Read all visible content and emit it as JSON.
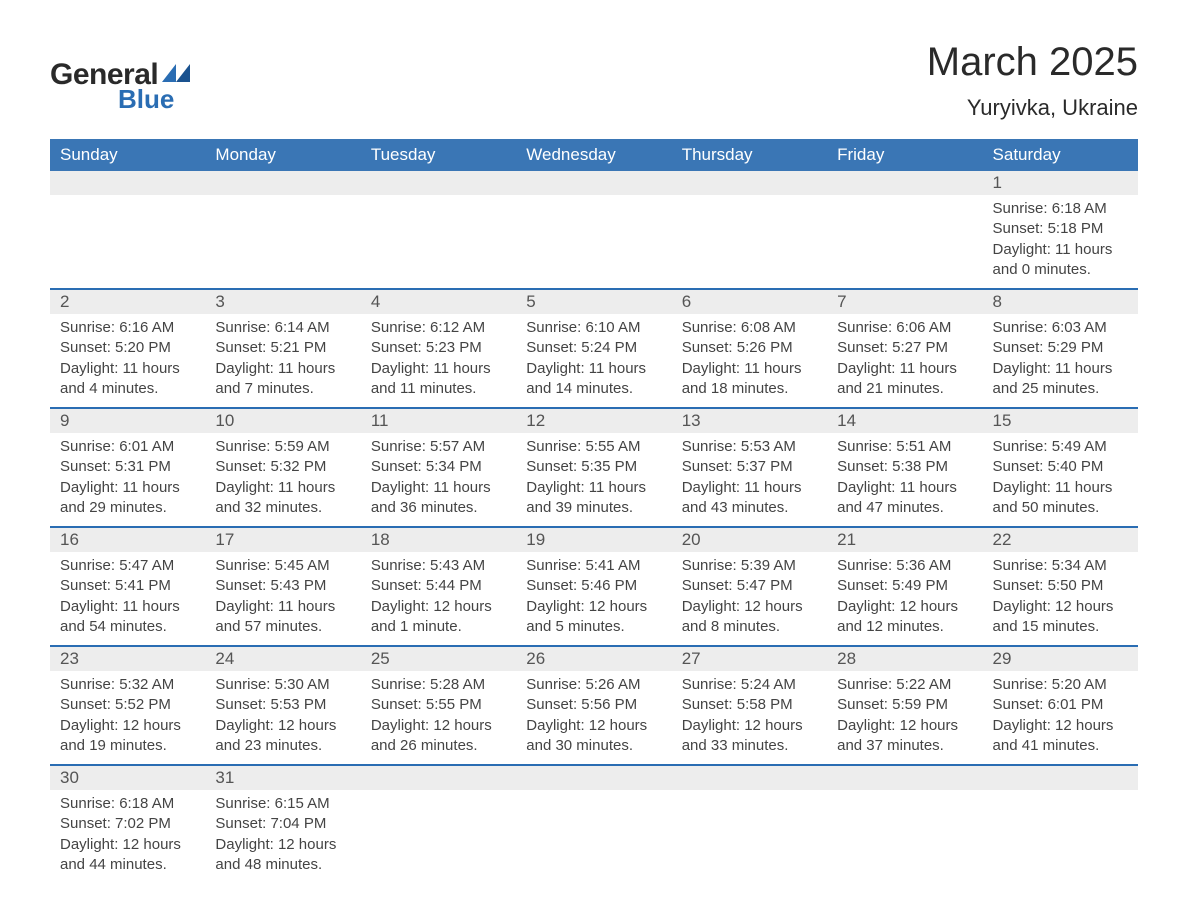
{
  "logo": {
    "line1": "General",
    "line2": "Blue"
  },
  "title": "March 2025",
  "location": "Yuryivka, Ukraine",
  "colors": {
    "header_bg": "#3a76b5",
    "header_text": "#ffffff",
    "daynum_bg": "#ededed",
    "row_divider": "#2a6db3",
    "text": "#3a3a3a",
    "logo_blue": "#2a6db3",
    "page_bg": "#ffffff"
  },
  "typography": {
    "title_fontsize": 40,
    "location_fontsize": 22,
    "weekday_fontsize": 17,
    "daynum_fontsize": 17,
    "detail_fontsize": 15
  },
  "calendar": {
    "type": "table",
    "weekdays": [
      "Sunday",
      "Monday",
      "Tuesday",
      "Wednesday",
      "Thursday",
      "Friday",
      "Saturday"
    ],
    "weeks": [
      {
        "days": [
          null,
          null,
          null,
          null,
          null,
          null,
          {
            "n": "1",
            "sunrise": "Sunrise: 6:18 AM",
            "sunset": "Sunset: 5:18 PM",
            "dl1": "Daylight: 11 hours",
            "dl2": "and 0 minutes."
          }
        ]
      },
      {
        "days": [
          {
            "n": "2",
            "sunrise": "Sunrise: 6:16 AM",
            "sunset": "Sunset: 5:20 PM",
            "dl1": "Daylight: 11 hours",
            "dl2": "and 4 minutes."
          },
          {
            "n": "3",
            "sunrise": "Sunrise: 6:14 AM",
            "sunset": "Sunset: 5:21 PM",
            "dl1": "Daylight: 11 hours",
            "dl2": "and 7 minutes."
          },
          {
            "n": "4",
            "sunrise": "Sunrise: 6:12 AM",
            "sunset": "Sunset: 5:23 PM",
            "dl1": "Daylight: 11 hours",
            "dl2": "and 11 minutes."
          },
          {
            "n": "5",
            "sunrise": "Sunrise: 6:10 AM",
            "sunset": "Sunset: 5:24 PM",
            "dl1": "Daylight: 11 hours",
            "dl2": "and 14 minutes."
          },
          {
            "n": "6",
            "sunrise": "Sunrise: 6:08 AM",
            "sunset": "Sunset: 5:26 PM",
            "dl1": "Daylight: 11 hours",
            "dl2": "and 18 minutes."
          },
          {
            "n": "7",
            "sunrise": "Sunrise: 6:06 AM",
            "sunset": "Sunset: 5:27 PM",
            "dl1": "Daylight: 11 hours",
            "dl2": "and 21 minutes."
          },
          {
            "n": "8",
            "sunrise": "Sunrise: 6:03 AM",
            "sunset": "Sunset: 5:29 PM",
            "dl1": "Daylight: 11 hours",
            "dl2": "and 25 minutes."
          }
        ]
      },
      {
        "days": [
          {
            "n": "9",
            "sunrise": "Sunrise: 6:01 AM",
            "sunset": "Sunset: 5:31 PM",
            "dl1": "Daylight: 11 hours",
            "dl2": "and 29 minutes."
          },
          {
            "n": "10",
            "sunrise": "Sunrise: 5:59 AM",
            "sunset": "Sunset: 5:32 PM",
            "dl1": "Daylight: 11 hours",
            "dl2": "and 32 minutes."
          },
          {
            "n": "11",
            "sunrise": "Sunrise: 5:57 AM",
            "sunset": "Sunset: 5:34 PM",
            "dl1": "Daylight: 11 hours",
            "dl2": "and 36 minutes."
          },
          {
            "n": "12",
            "sunrise": "Sunrise: 5:55 AM",
            "sunset": "Sunset: 5:35 PM",
            "dl1": "Daylight: 11 hours",
            "dl2": "and 39 minutes."
          },
          {
            "n": "13",
            "sunrise": "Sunrise: 5:53 AM",
            "sunset": "Sunset: 5:37 PM",
            "dl1": "Daylight: 11 hours",
            "dl2": "and 43 minutes."
          },
          {
            "n": "14",
            "sunrise": "Sunrise: 5:51 AM",
            "sunset": "Sunset: 5:38 PM",
            "dl1": "Daylight: 11 hours",
            "dl2": "and 47 minutes."
          },
          {
            "n": "15",
            "sunrise": "Sunrise: 5:49 AM",
            "sunset": "Sunset: 5:40 PM",
            "dl1": "Daylight: 11 hours",
            "dl2": "and 50 minutes."
          }
        ]
      },
      {
        "days": [
          {
            "n": "16",
            "sunrise": "Sunrise: 5:47 AM",
            "sunset": "Sunset: 5:41 PM",
            "dl1": "Daylight: 11 hours",
            "dl2": "and 54 minutes."
          },
          {
            "n": "17",
            "sunrise": "Sunrise: 5:45 AM",
            "sunset": "Sunset: 5:43 PM",
            "dl1": "Daylight: 11 hours",
            "dl2": "and 57 minutes."
          },
          {
            "n": "18",
            "sunrise": "Sunrise: 5:43 AM",
            "sunset": "Sunset: 5:44 PM",
            "dl1": "Daylight: 12 hours",
            "dl2": "and 1 minute."
          },
          {
            "n": "19",
            "sunrise": "Sunrise: 5:41 AM",
            "sunset": "Sunset: 5:46 PM",
            "dl1": "Daylight: 12 hours",
            "dl2": "and 5 minutes."
          },
          {
            "n": "20",
            "sunrise": "Sunrise: 5:39 AM",
            "sunset": "Sunset: 5:47 PM",
            "dl1": "Daylight: 12 hours",
            "dl2": "and 8 minutes."
          },
          {
            "n": "21",
            "sunrise": "Sunrise: 5:36 AM",
            "sunset": "Sunset: 5:49 PM",
            "dl1": "Daylight: 12 hours",
            "dl2": "and 12 minutes."
          },
          {
            "n": "22",
            "sunrise": "Sunrise: 5:34 AM",
            "sunset": "Sunset: 5:50 PM",
            "dl1": "Daylight: 12 hours",
            "dl2": "and 15 minutes."
          }
        ]
      },
      {
        "days": [
          {
            "n": "23",
            "sunrise": "Sunrise: 5:32 AM",
            "sunset": "Sunset: 5:52 PM",
            "dl1": "Daylight: 12 hours",
            "dl2": "and 19 minutes."
          },
          {
            "n": "24",
            "sunrise": "Sunrise: 5:30 AM",
            "sunset": "Sunset: 5:53 PM",
            "dl1": "Daylight: 12 hours",
            "dl2": "and 23 minutes."
          },
          {
            "n": "25",
            "sunrise": "Sunrise: 5:28 AM",
            "sunset": "Sunset: 5:55 PM",
            "dl1": "Daylight: 12 hours",
            "dl2": "and 26 minutes."
          },
          {
            "n": "26",
            "sunrise": "Sunrise: 5:26 AM",
            "sunset": "Sunset: 5:56 PM",
            "dl1": "Daylight: 12 hours",
            "dl2": "and 30 minutes."
          },
          {
            "n": "27",
            "sunrise": "Sunrise: 5:24 AM",
            "sunset": "Sunset: 5:58 PM",
            "dl1": "Daylight: 12 hours",
            "dl2": "and 33 minutes."
          },
          {
            "n": "28",
            "sunrise": "Sunrise: 5:22 AM",
            "sunset": "Sunset: 5:59 PM",
            "dl1": "Daylight: 12 hours",
            "dl2": "and 37 minutes."
          },
          {
            "n": "29",
            "sunrise": "Sunrise: 5:20 AM",
            "sunset": "Sunset: 6:01 PM",
            "dl1": "Daylight: 12 hours",
            "dl2": "and 41 minutes."
          }
        ]
      },
      {
        "days": [
          {
            "n": "30",
            "sunrise": "Sunrise: 6:18 AM",
            "sunset": "Sunset: 7:02 PM",
            "dl1": "Daylight: 12 hours",
            "dl2": "and 44 minutes."
          },
          {
            "n": "31",
            "sunrise": "Sunrise: 6:15 AM",
            "sunset": "Sunset: 7:04 PM",
            "dl1": "Daylight: 12 hours",
            "dl2": "and 48 minutes."
          },
          null,
          null,
          null,
          null,
          null
        ]
      }
    ]
  }
}
